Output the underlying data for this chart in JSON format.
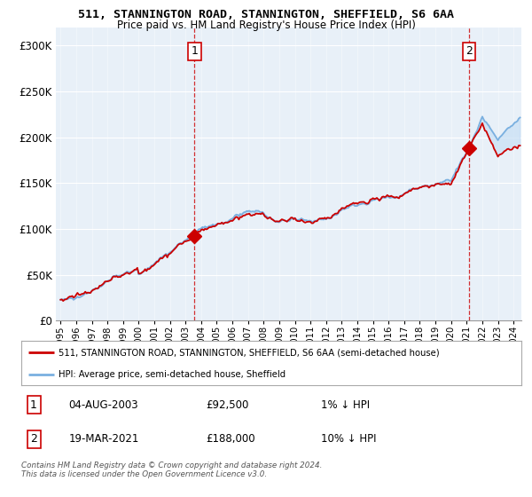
{
  "title_line1": "511, STANNINGTON ROAD, STANNINGTON, SHEFFIELD, S6 6AA",
  "title_line2": "Price paid vs. HM Land Registry's House Price Index (HPI)",
  "legend_label1": "511, STANNINGTON ROAD, STANNINGTON, SHEFFIELD, S6 6AA (semi-detached house)",
  "legend_label2": "HPI: Average price, semi-detached house, Sheffield",
  "sale1_year": 2003.583,
  "sale1_price": 92500,
  "sale2_year": 2021.167,
  "sale2_price": 188000,
  "table_row1": [
    "1",
    "04-AUG-2003",
    "£92,500",
    "1% ↓ HPI"
  ],
  "table_row2": [
    "2",
    "19-MAR-2021",
    "£188,000",
    "10% ↓ HPI"
  ],
  "footnote": "Contains HM Land Registry data © Crown copyright and database right 2024.\nThis data is licensed under the Open Government Licence v3.0.",
  "hpi_color": "#7ab0e0",
  "price_color": "#cc0000",
  "dashed_color": "#cc0000",
  "fill_color": "#ddeeff",
  "background_color": "#ffffff",
  "ylim": [
    0,
    320000
  ],
  "yticks": [
    0,
    50000,
    100000,
    150000,
    200000,
    250000,
    300000
  ],
  "ytick_labels": [
    "£0",
    "£50K",
    "£100K",
    "£150K",
    "£200K",
    "£250K",
    "£300K"
  ],
  "xmin": 1994.7,
  "xmax": 2024.5
}
